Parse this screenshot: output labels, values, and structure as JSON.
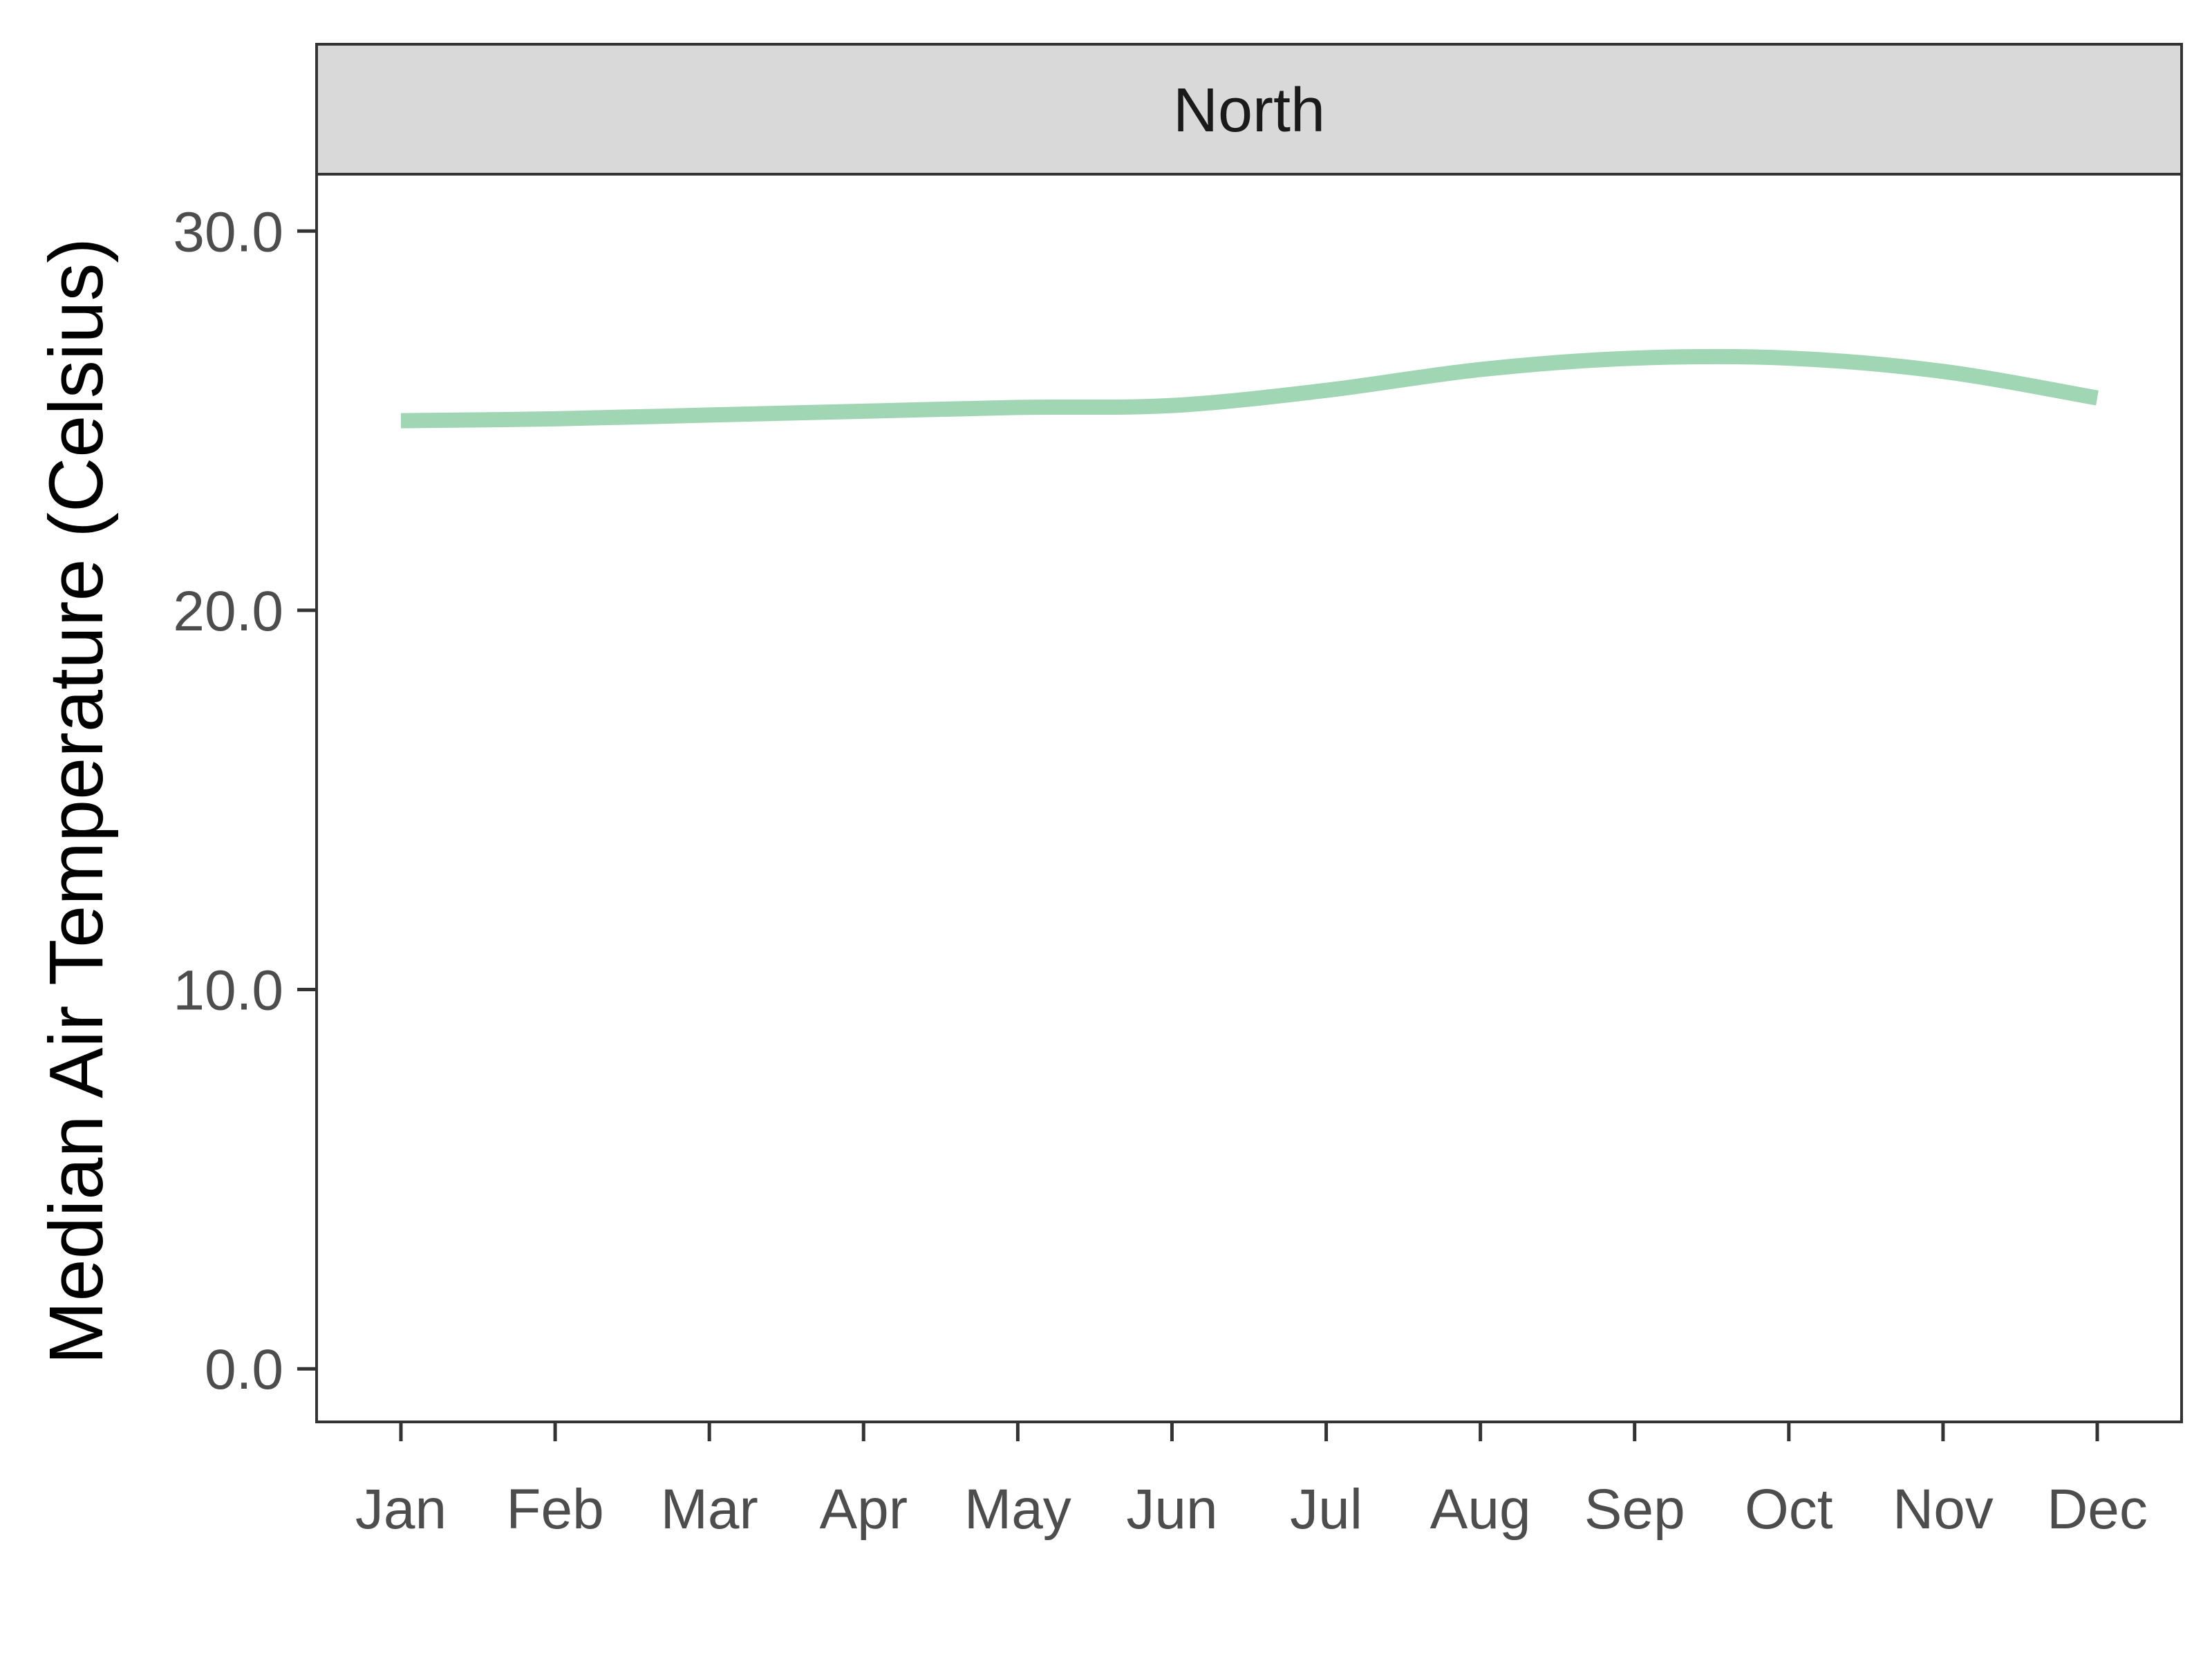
{
  "chart_data": {
    "type": "line",
    "facet": "North",
    "xlabel": "",
    "ylabel": "Median Air Temperature (Celsius)",
    "categories": [
      "Jan",
      "Feb",
      "Mar",
      "Apr",
      "May",
      "Jun",
      "Jul",
      "Aug",
      "Sep",
      "Oct",
      "Nov",
      "Dec"
    ],
    "y_ticks": [
      "0.0",
      "10.0",
      "20.0",
      "30.0"
    ],
    "ylim": [
      -1.4,
      31.5
    ],
    "grid": false,
    "legend": "none",
    "series": [
      {
        "color": "#a1d6b4",
        "values": [
          25.0,
          25.05,
          25.15,
          25.25,
          25.35,
          25.4,
          25.8,
          26.35,
          26.65,
          26.65,
          26.3,
          25.6
        ]
      }
    ]
  }
}
